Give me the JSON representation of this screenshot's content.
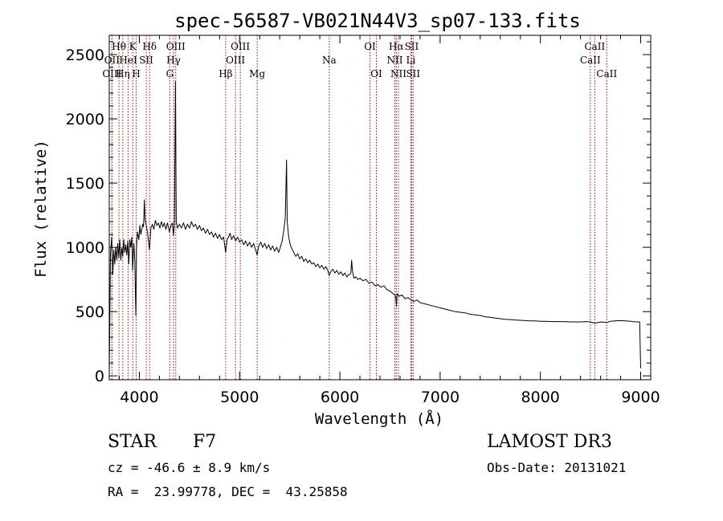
{
  "chart_data": {
    "type": "line",
    "title": "spec-56587-VB021N44V3_sp07-133.fits",
    "xlabel": "Wavelength (Å)",
    "ylabel": "Flux (relative)",
    "xlim": [
      3700,
      9100
    ],
    "ylim": [
      -30,
      2650
    ],
    "xticks": [
      4000,
      5000,
      6000,
      7000,
      8000,
      9000
    ],
    "yticks": [
      0,
      500,
      1000,
      1500,
      2000,
      2500
    ],
    "series": [
      {
        "name": "flux",
        "points": [
          [
            3700,
            10
          ],
          [
            3712,
            960
          ],
          [
            3725,
            1080
          ],
          [
            3735,
            790
          ],
          [
            3745,
            980
          ],
          [
            3755,
            870
          ],
          [
            3765,
            1000
          ],
          [
            3775,
            900
          ],
          [
            3785,
            1030
          ],
          [
            3795,
            920
          ],
          [
            3805,
            1060
          ],
          [
            3815,
            900
          ],
          [
            3825,
            1000
          ],
          [
            3835,
            930
          ],
          [
            3845,
            1060
          ],
          [
            3855,
            960
          ],
          [
            3865,
            1020
          ],
          [
            3875,
            940
          ],
          [
            3885,
            1050
          ],
          [
            3895,
            870
          ],
          [
            3905,
            1060
          ],
          [
            3915,
            1000
          ],
          [
            3925,
            1080
          ],
          [
            3933,
            820
          ],
          [
            3945,
            1030
          ],
          [
            3955,
            900
          ],
          [
            3965,
            470
          ],
          [
            3972,
            1000
          ],
          [
            3982,
            1120
          ],
          [
            3995,
            1060
          ],
          [
            4005,
            1170
          ],
          [
            4015,
            1100
          ],
          [
            4025,
            1140
          ],
          [
            4035,
            1180
          ],
          [
            4042,
            1160
          ],
          [
            4050,
            1370
          ],
          [
            4058,
            1210
          ],
          [
            4070,
            1170
          ],
          [
            4085,
            1090
          ],
          [
            4101,
            980
          ],
          [
            4115,
            1150
          ],
          [
            4130,
            1180
          ],
          [
            4145,
            1140
          ],
          [
            4160,
            1210
          ],
          [
            4175,
            1170
          ],
          [
            4190,
            1190
          ],
          [
            4205,
            1150
          ],
          [
            4220,
            1200
          ],
          [
            4235,
            1160
          ],
          [
            4250,
            1190
          ],
          [
            4265,
            1140
          ],
          [
            4280,
            1190
          ],
          [
            4300,
            1120
          ],
          [
            4315,
            1170
          ],
          [
            4330,
            1190
          ],
          [
            4340,
            1090
          ],
          [
            4350,
            1180
          ],
          [
            4360,
            2290
          ],
          [
            4368,
            1200
          ],
          [
            4380,
            1150
          ],
          [
            4400,
            1180
          ],
          [
            4420,
            1150
          ],
          [
            4440,
            1190
          ],
          [
            4460,
            1140
          ],
          [
            4480,
            1180
          ],
          [
            4500,
            1150
          ],
          [
            4520,
            1200
          ],
          [
            4540,
            1160
          ],
          [
            4560,
            1180
          ],
          [
            4580,
            1140
          ],
          [
            4600,
            1170
          ],
          [
            4620,
            1130
          ],
          [
            4640,
            1150
          ],
          [
            4660,
            1110
          ],
          [
            4680,
            1140
          ],
          [
            4700,
            1100
          ],
          [
            4720,
            1120
          ],
          [
            4740,
            1080
          ],
          [
            4760,
            1110
          ],
          [
            4780,
            1070
          ],
          [
            4800,
            1100
          ],
          [
            4820,
            1060
          ],
          [
            4840,
            1080
          ],
          [
            4861,
            960
          ],
          [
            4875,
            1060
          ],
          [
            4890,
            1080
          ],
          [
            4905,
            1110
          ],
          [
            4920,
            1060
          ],
          [
            4940,
            1090
          ],
          [
            4960,
            1050
          ],
          [
            4980,
            1080
          ],
          [
            5000,
            1040
          ],
          [
            5020,
            1060
          ],
          [
            5040,
            1020
          ],
          [
            5060,
            1050
          ],
          [
            5080,
            1010
          ],
          [
            5100,
            1040
          ],
          [
            5120,
            1000
          ],
          [
            5140,
            1030
          ],
          [
            5160,
            980
          ],
          [
            5175,
            940
          ],
          [
            5190,
            1010
          ],
          [
            5210,
            1040
          ],
          [
            5230,
            1000
          ],
          [
            5250,
            1030
          ],
          [
            5270,
            990
          ],
          [
            5290,
            1020
          ],
          [
            5310,
            980
          ],
          [
            5330,
            1010
          ],
          [
            5350,
            970
          ],
          [
            5370,
            1000
          ],
          [
            5390,
            960
          ],
          [
            5410,
            1010
          ],
          [
            5425,
            1050
          ],
          [
            5440,
            1130
          ],
          [
            5455,
            1230
          ],
          [
            5468,
            1680
          ],
          [
            5475,
            1200
          ],
          [
            5490,
            1080
          ],
          [
            5505,
            1020
          ],
          [
            5520,
            990
          ],
          [
            5540,
            960
          ],
          [
            5560,
            930
          ],
          [
            5580,
            950
          ],
          [
            5600,
            910
          ],
          [
            5620,
            930
          ],
          [
            5640,
            890
          ],
          [
            5660,
            910
          ],
          [
            5680,
            880
          ],
          [
            5700,
            900
          ],
          [
            5720,
            870
          ],
          [
            5740,
            880
          ],
          [
            5760,
            850
          ],
          [
            5780,
            870
          ],
          [
            5800,
            840
          ],
          [
            5820,
            860
          ],
          [
            5840,
            830
          ],
          [
            5860,
            850
          ],
          [
            5880,
            820
          ],
          [
            5893,
            780
          ],
          [
            5910,
            810
          ],
          [
            5930,
            830
          ],
          [
            5950,
            800
          ],
          [
            5970,
            820
          ],
          [
            5990,
            790
          ],
          [
            6010,
            810
          ],
          [
            6030,
            780
          ],
          [
            6050,
            800
          ],
          [
            6070,
            770
          ],
          [
            6090,
            790
          ],
          [
            6100,
            790
          ],
          [
            6110,
            800
          ],
          [
            6117,
            900
          ],
          [
            6125,
            820
          ],
          [
            6140,
            760
          ],
          [
            6160,
            770
          ],
          [
            6180,
            750
          ],
          [
            6200,
            760
          ],
          [
            6230,
            740
          ],
          [
            6260,
            750
          ],
          [
            6290,
            720
          ],
          [
            6320,
            730
          ],
          [
            6350,
            700
          ],
          [
            6380,
            710
          ],
          [
            6410,
            690
          ],
          [
            6440,
            700
          ],
          [
            6470,
            670
          ],
          [
            6500,
            660
          ],
          [
            6530,
            640
          ],
          [
            6550,
            630
          ],
          [
            6560,
            590
          ],
          [
            6565,
            540
          ],
          [
            6570,
            640
          ],
          [
            6590,
            620
          ],
          [
            6620,
            630
          ],
          [
            6650,
            600
          ],
          [
            6680,
            610
          ],
          [
            6710,
            590
          ],
          [
            6740,
            580
          ],
          [
            6770,
            590
          ],
          [
            6800,
            570
          ],
          [
            6850,
            560
          ],
          [
            6900,
            550
          ],
          [
            6950,
            540
          ],
          [
            7000,
            530
          ],
          [
            7050,
            520
          ],
          [
            7100,
            510
          ],
          [
            7150,
            500
          ],
          [
            7200,
            495
          ],
          [
            7250,
            490
          ],
          [
            7300,
            480
          ],
          [
            7350,
            475
          ],
          [
            7400,
            470
          ],
          [
            7450,
            460
          ],
          [
            7500,
            455
          ],
          [
            7550,
            450
          ],
          [
            7600,
            445
          ],
          [
            7650,
            440
          ],
          [
            7700,
            438
          ],
          [
            7750,
            435
          ],
          [
            7800,
            432
          ],
          [
            7850,
            430
          ],
          [
            7900,
            428
          ],
          [
            7950,
            427
          ],
          [
            8000,
            425
          ],
          [
            8050,
            424
          ],
          [
            8100,
            423
          ],
          [
            8150,
            422
          ],
          [
            8200,
            422
          ],
          [
            8250,
            421
          ],
          [
            8300,
            420
          ],
          [
            8350,
            420
          ],
          [
            8400,
            420
          ],
          [
            8450,
            422
          ],
          [
            8500,
            420
          ],
          [
            8542,
            410
          ],
          [
            8600,
            420
          ],
          [
            8662,
            415
          ],
          [
            8700,
            425
          ],
          [
            8750,
            428
          ],
          [
            8800,
            430
          ],
          [
            8850,
            428
          ],
          [
            8900,
            425
          ],
          [
            8950,
            420
          ],
          [
            8990,
            420
          ],
          [
            9000,
            60
          ]
        ]
      }
    ],
    "lines": [
      {
        "label": "Hθ",
        "wave": 3797,
        "row": 0
      },
      {
        "label": "OII",
        "wave": 3727,
        "row": 1
      },
      {
        "label": "OIII",
        "wave": 3727,
        "row": 2
      },
      {
        "label": "K",
        "wave": 3934,
        "row": 0
      },
      {
        "label": "HeI",
        "wave": 3889,
        "row": 1
      },
      {
        "label": "Hη",
        "wave": 3835,
        "row": 2
      },
      {
        "label": "Hδ",
        "wave": 4102,
        "row": 0
      },
      {
        "label": "SII",
        "wave": 4069,
        "row": 1
      },
      {
        "label": "H",
        "wave": 3969,
        "row": 2
      },
      {
        "label": "OIII",
        "wave": 4363,
        "row": 0
      },
      {
        "label": "Hγ",
        "wave": 4341,
        "row": 1
      },
      {
        "label": "G",
        "wave": 4304,
        "row": 2
      },
      {
        "label": "OIII",
        "wave": 5007,
        "row": 0
      },
      {
        "label": "OIII",
        "wave": 4959,
        "row": 1
      },
      {
        "label": "Hβ",
        "wave": 4861,
        "row": 2
      },
      {
        "label": "Mg",
        "wave": 5175,
        "row": 2
      },
      {
        "label": "Na",
        "wave": 5894,
        "row": 1
      },
      {
        "label": "OI",
        "wave": 6300,
        "row": 0
      },
      {
        "label": "OI",
        "wave": 6364,
        "row": 2
      },
      {
        "label": "Hα",
        "wave": 6563,
        "row": 0
      },
      {
        "label": "SII",
        "wave": 6716,
        "row": 0
      },
      {
        "label": "NII",
        "wave": 6548,
        "row": 1
      },
      {
        "label": "Li",
        "wave": 6708,
        "row": 1
      },
      {
        "label": "NII",
        "wave": 6584,
        "row": 2
      },
      {
        "label": "SII",
        "wave": 6731,
        "row": 2
      },
      {
        "label": "CaII",
        "wave": 8542,
        "row": 0
      },
      {
        "label": "CaII",
        "wave": 8498,
        "row": 1
      },
      {
        "label": "CaII",
        "wave": 8662,
        "row": 2
      }
    ]
  },
  "info": {
    "class": "STAR",
    "subclass": "F7",
    "survey": "LAMOST DR3",
    "cz": "cz = -46.6 ± 8.9 km/s",
    "obs_date": "Obs-Date: 20131021",
    "radec": "RA =  23.99778, DEC =  43.25858"
  }
}
